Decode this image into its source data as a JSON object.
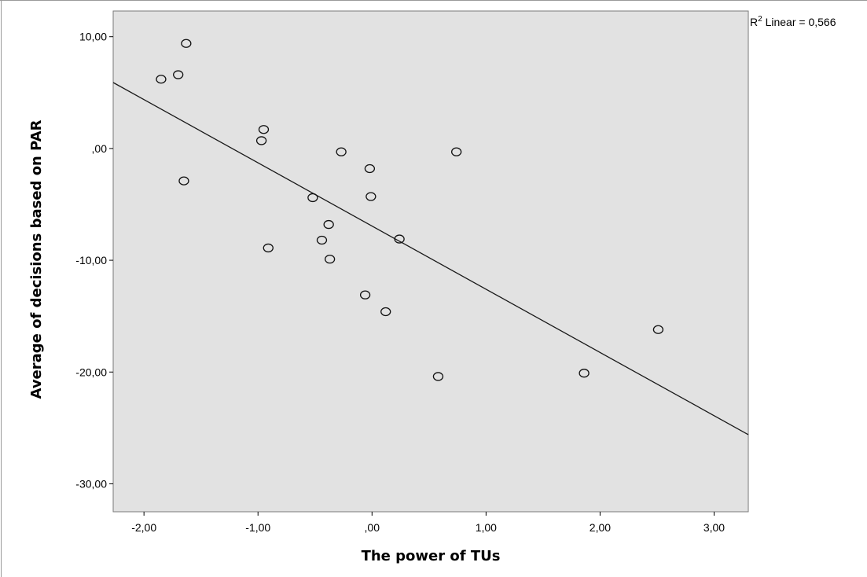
{
  "chart_data": {
    "type": "scatter",
    "xlabel": "The power of TUs",
    "ylabel": "Average of decisions based on PAR",
    "xlim": [
      -2.27,
      3.3
    ],
    "ylim": [
      -32.5,
      12.3
    ],
    "x_ticks": [
      -2,
      -1,
      0,
      1,
      2,
      3
    ],
    "x_tick_labels": [
      "-2,00",
      "-1,00",
      ",00",
      "1,00",
      "2,00",
      "3,00"
    ],
    "y_ticks": [
      10,
      0,
      -10,
      -20,
      -30
    ],
    "y_tick_labels": [
      "10,00",
      ",00",
      "-10,00",
      "-20,00",
      "-30,00"
    ],
    "grid": false,
    "background_color": "#e2e2e2",
    "annotation": {
      "text": "R² Linear = 0,566",
      "r_label": "R",
      "superscript": "2",
      "rest": " Linear = 0,566"
    },
    "fit_line": {
      "x": [
        -2.27,
        3.3
      ],
      "y": [
        5.9,
        -25.6
      ]
    },
    "points": [
      {
        "x": -1.85,
        "y": 6.2
      },
      {
        "x": -1.7,
        "y": 6.6
      },
      {
        "x": -1.63,
        "y": 9.4
      },
      {
        "x": -1.65,
        "y": -2.9
      },
      {
        "x": -0.95,
        "y": 1.7
      },
      {
        "x": -0.97,
        "y": 0.7
      },
      {
        "x": -0.91,
        "y": -8.9
      },
      {
        "x": -0.52,
        "y": -4.4
      },
      {
        "x": -0.38,
        "y": -6.8
      },
      {
        "x": -0.44,
        "y": -8.2
      },
      {
        "x": -0.37,
        "y": -9.9
      },
      {
        "x": -0.27,
        "y": -0.3
      },
      {
        "x": -0.02,
        "y": -1.8
      },
      {
        "x": -0.01,
        "y": -4.3
      },
      {
        "x": -0.06,
        "y": -13.1
      },
      {
        "x": 0.12,
        "y": -14.6
      },
      {
        "x": 0.24,
        "y": -8.1
      },
      {
        "x": 0.58,
        "y": -20.4
      },
      {
        "x": 0.74,
        "y": -0.3
      },
      {
        "x": 1.86,
        "y": -20.1
      },
      {
        "x": 2.51,
        "y": -16.2
      }
    ]
  }
}
